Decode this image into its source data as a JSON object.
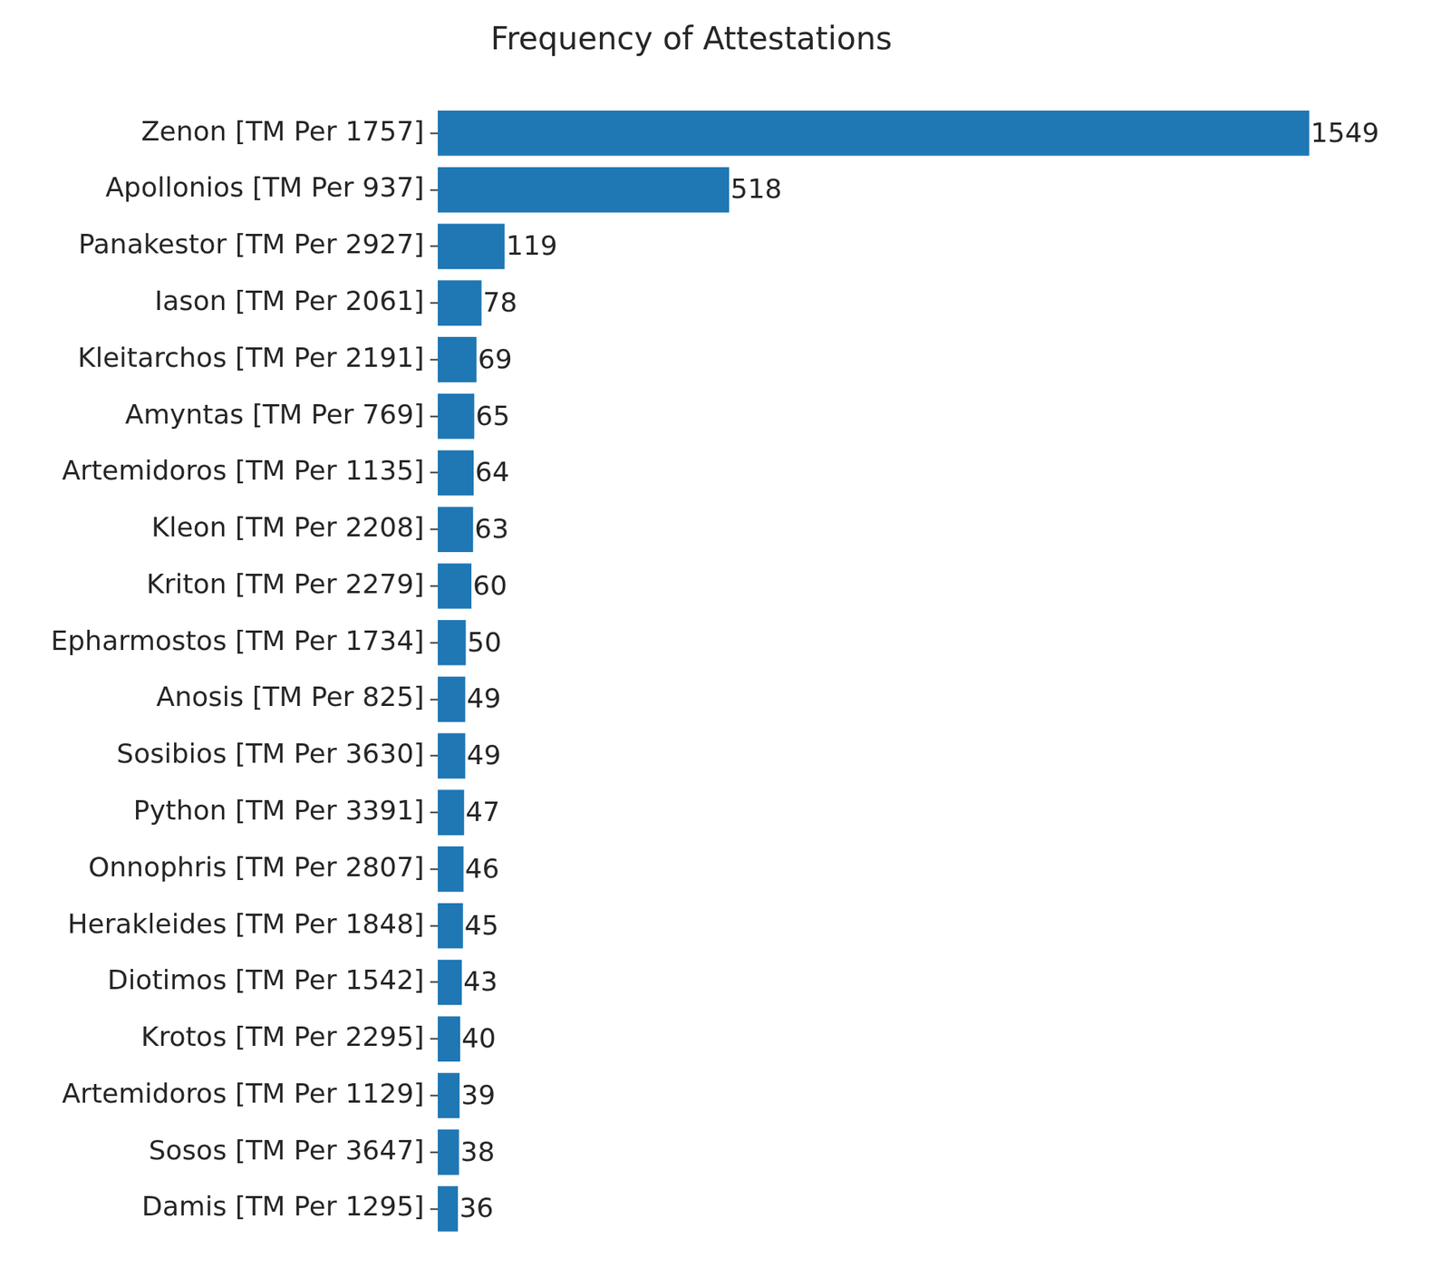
{
  "chart_data": {
    "type": "bar",
    "title": "Frequency of Attestations",
    "orientation": "horizontal",
    "categories": [
      "Zenon [TM Per 1757]",
      "Apollonios [TM Per 937]",
      "Panakestor [TM Per 2927]",
      "Iason [TM Per 2061]",
      "Kleitarchos [TM Per 2191]",
      "Amyntas [TM Per 769]",
      "Artemidoros [TM Per 1135]",
      "Kleon [TM Per 2208]",
      "Kriton [TM Per 2279]",
      "Epharmostos [TM Per 1734]",
      "Anosis [TM Per 825]",
      "Sosibios [TM Per 3630]",
      "Python [TM Per 3391]",
      "Onnophris [TM Per 2807]",
      "Herakleides [TM Per 1848]",
      "Diotimos [TM Per 1542]",
      "Krotos [TM Per 2295]",
      "Artemidoros [TM Per 1129]",
      "Sosos [TM Per 3647]",
      "Damis [TM Per 1295]"
    ],
    "values": [
      1549,
      518,
      119,
      78,
      69,
      65,
      64,
      63,
      60,
      50,
      49,
      49,
      47,
      46,
      45,
      43,
      40,
      39,
      38,
      36
    ],
    "color": "#1f77b4",
    "data_labels": true,
    "grid": false,
    "tick_labels": "y"
  }
}
